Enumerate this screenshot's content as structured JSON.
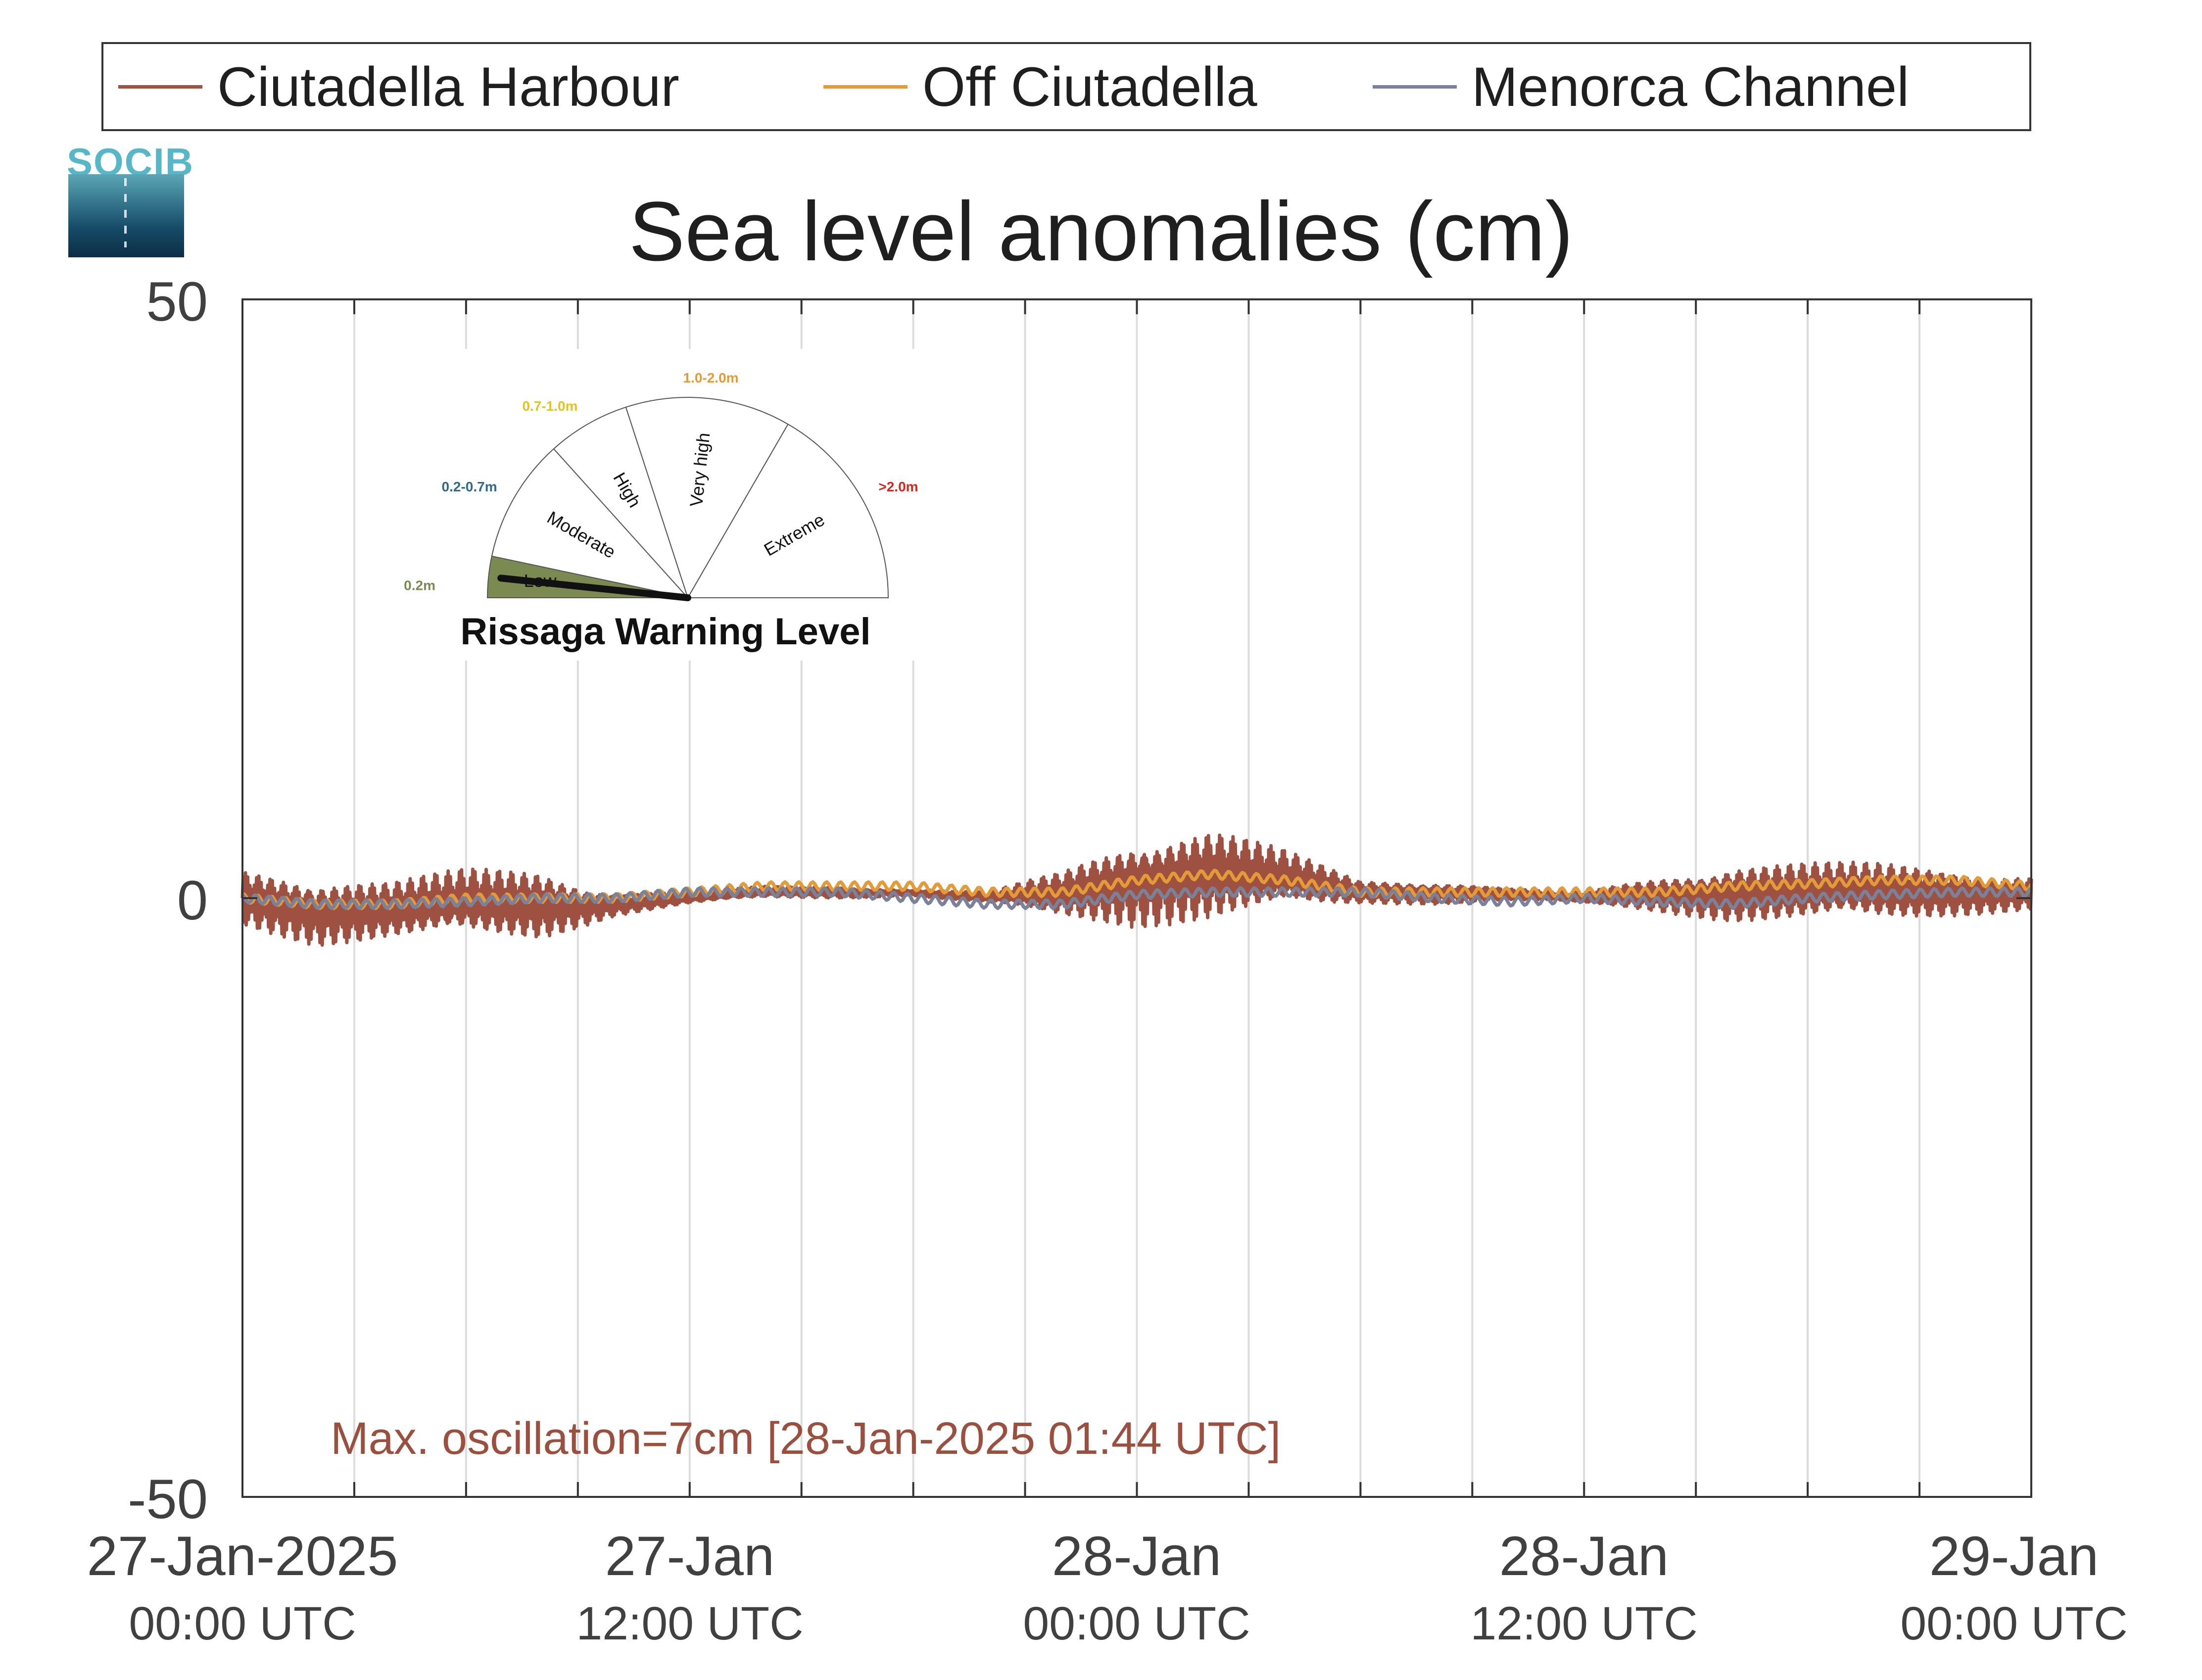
{
  "legend": {
    "items": [
      {
        "label": "Ciutadella Harbour",
        "color": "#9e5141"
      },
      {
        "label": "Off Ciutadella",
        "color": "#e49a36"
      },
      {
        "label": "Menorca Channel",
        "color": "#7a8199"
      }
    ]
  },
  "logo": {
    "text": "SOCIB",
    "color": "#56b7c8"
  },
  "annotation": {
    "text": "Max. oscillation=7cm [28-Jan-2025 01:44 UTC]"
  },
  "gauge": {
    "title": "Rissaga Warning Level",
    "sectors": [
      {
        "name": "Low",
        "range": "<0.2m",
        "color": "#7b8a50",
        "active": true
      },
      {
        "name": "Moderate",
        "range": "0.2-0.7m",
        "color": "#2f6a8a"
      },
      {
        "name": "High",
        "range": "0.7-1.0m",
        "color": "#e6c21f"
      },
      {
        "name": "Very high",
        "range": "1.0-2.0m",
        "color": "#e49a36"
      },
      {
        "name": "Extreme",
        "range": ">2.0m",
        "color": "#d9261c"
      }
    ]
  },
  "chart_data": {
    "type": "line",
    "title": "Sea level anomalies (cm)",
    "xlabel": "",
    "ylabel": "",
    "ylim": [
      -50,
      50
    ],
    "yticks": [
      "50",
      "0",
      "-50"
    ],
    "xlim": [
      "2025-01-27T00:00",
      "2025-01-29T00:00"
    ],
    "grid": "vertical, every 3 hours",
    "legend_position": "top, above plot",
    "xticks": [
      {
        "label": "27-Jan-2025",
        "sub": "00:00 UTC",
        "time": "2025-01-27T00:00"
      },
      {
        "label": "27-Jan",
        "sub": "12:00 UTC",
        "time": "2025-01-27T12:00"
      },
      {
        "label": "28-Jan",
        "sub": "00:00 UTC",
        "time": "2025-01-28T00:00"
      },
      {
        "label": "28-Jan",
        "sub": "12:00 UTC",
        "time": "2025-01-28T12:00"
      },
      {
        "label": "29-Jan",
        "sub": "00:00 UTC",
        "time": "2025-01-29T00:00"
      }
    ],
    "x": [
      "2025-01-27T00:00",
      "2025-01-27T02:00",
      "2025-01-27T04:00",
      "2025-01-27T06:00",
      "2025-01-27T08:00",
      "2025-01-27T10:00",
      "2025-01-27T12:00",
      "2025-01-27T14:00",
      "2025-01-27T16:00",
      "2025-01-27T18:00",
      "2025-01-27T20:00",
      "2025-01-27T22:00",
      "2025-01-28T00:00",
      "2025-01-28T02:00",
      "2025-01-28T04:00",
      "2025-01-28T06:00",
      "2025-01-28T08:00",
      "2025-01-28T10:00",
      "2025-01-28T12:00",
      "2025-01-28T14:00",
      "2025-01-28T16:00",
      "2025-01-28T18:00",
      "2025-01-28T20:00",
      "2025-01-28T22:00",
      "2025-01-29T00:00"
    ],
    "series": [
      {
        "name": "Ciutadella Harbour",
        "color": "#9e5141",
        "mean": [
          0,
          -1,
          -1,
          -0.5,
          -0.5,
          -0.5,
          0,
          0.5,
          0.5,
          0.5,
          0,
          0.3,
          1.5,
          2,
          1.5,
          0.5,
          0.5,
          0.3,
          0,
          0.3,
          0.5,
          0.5,
          0.5,
          0.5,
          0.5
        ],
        "amplitude": [
          2.5,
          3,
          2.5,
          3,
          3,
          1,
          0.5,
          0.5,
          0.5,
          0.3,
          0.5,
          2,
          4,
          4,
          2.5,
          1,
          1,
          0.5,
          0.5,
          1.5,
          2.5,
          2.5,
          2.5,
          2,
          1.5
        ]
      },
      {
        "name": "Off Ciutadella",
        "color": "#e49a36",
        "values": [
          0,
          -0.5,
          -0.5,
          0,
          0,
          0,
          0.5,
          1,
          1,
          1,
          0.5,
          0.5,
          1.5,
          2,
          1.5,
          0.5,
          0.5,
          0.5,
          0.5,
          0.5,
          1,
          1.2,
          1.5,
          1.5,
          1
        ]
      },
      {
        "name": "Menorca Channel",
        "color": "#7a8199",
        "values": [
          0,
          -0.5,
          -0.5,
          -0.3,
          0,
          0,
          0.5,
          0.5,
          0.5,
          0,
          -0.5,
          -0.5,
          0.3,
          0.5,
          0.5,
          0.5,
          0,
          -0.3,
          0,
          -0.3,
          -0.5,
          0,
          0.3,
          0.5,
          0.5
        ]
      }
    ]
  }
}
